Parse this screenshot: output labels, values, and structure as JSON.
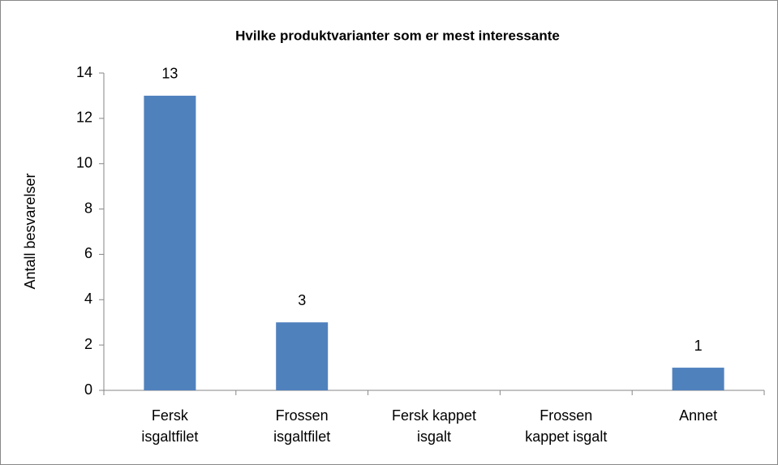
{
  "chart_data": {
    "type": "bar",
    "title": "Hvilke produktvarianter som er mest interessante",
    "y_label": "Antall besvarelser",
    "categories": [
      "Fersk isgaltfilet",
      "Frossen isgaltfilet",
      "Fersk kappet isgalt",
      "Frossen kappet isgalt",
      "Annet"
    ],
    "values": [
      13,
      3,
      0,
      0,
      1
    ],
    "color": "#4f81bd",
    "ylim": [
      0,
      14
    ],
    "yticks": [
      0,
      2,
      4,
      6,
      8,
      10,
      12,
      14
    ],
    "grid": false
  }
}
